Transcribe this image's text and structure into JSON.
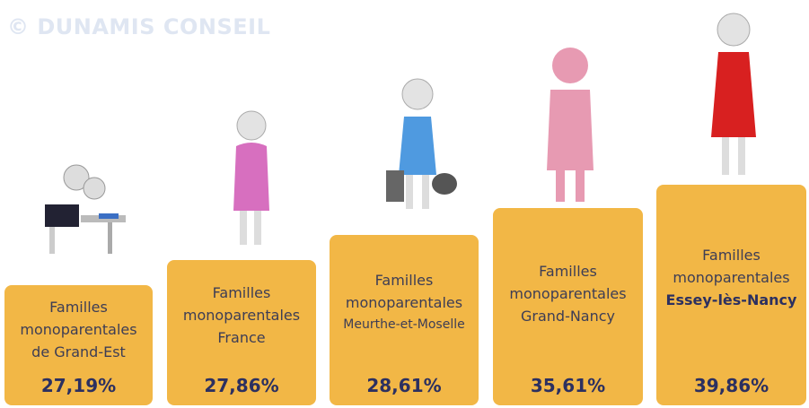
{
  "watermark": "© DUNAMIS CONSEIL",
  "items": [
    {
      "lines": [
        "Familles",
        "monoparentales",
        "de Grand-Est"
      ],
      "value": "27,19%"
    },
    {
      "lines": [
        "Familles",
        "monoparentales",
        "France"
      ],
      "value": "27,86%"
    },
    {
      "lines": [
        "Familles",
        "monoparentales",
        "Meurthe-et-Moselle"
      ],
      "value": "28,61%"
    },
    {
      "lines": [
        "Familles",
        "monoparentales",
        "Grand-Nancy"
      ],
      "value": "35,61%"
    },
    {
      "lines": [
        "Familles",
        "monoparentales",
        "Essey-lès-Nancy"
      ],
      "value": "39,86%"
    }
  ]
}
